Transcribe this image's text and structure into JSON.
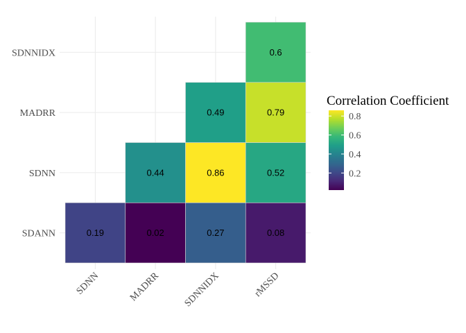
{
  "chart_data": {
    "type": "heatmap",
    "title": "",
    "xlabel": "",
    "ylabel": "",
    "x_categories": [
      "SDNN",
      "MADRR",
      "SDNNIDX",
      "rMSSD"
    ],
    "y_categories": [
      "SDANN",
      "SDNN",
      "MADRR",
      "SDNNIDX"
    ],
    "cells": [
      {
        "x": "SDNN",
        "y": "SDANN",
        "value": 0.19,
        "label": "0.19"
      },
      {
        "x": "MADRR",
        "y": "SDANN",
        "value": 0.02,
        "label": "0.02"
      },
      {
        "x": "SDNNIDX",
        "y": "SDANN",
        "value": 0.27,
        "label": "0.27"
      },
      {
        "x": "rMSSD",
        "y": "SDANN",
        "value": 0.08,
        "label": "0.08"
      },
      {
        "x": "MADRR",
        "y": "SDNN",
        "value": 0.44,
        "label": "0.44"
      },
      {
        "x": "SDNNIDX",
        "y": "SDNN",
        "value": 0.86,
        "label": "0.86"
      },
      {
        "x": "rMSSD",
        "y": "SDNN",
        "value": 0.52,
        "label": "0.52"
      },
      {
        "x": "SDNNIDX",
        "y": "MADRR",
        "value": 0.49,
        "label": "0.49"
      },
      {
        "x": "rMSSD",
        "y": "MADRR",
        "value": 0.79,
        "label": "0.79"
      },
      {
        "x": "rMSSD",
        "y": "SDNNIDX",
        "value": 0.6,
        "label": "0.6"
      }
    ],
    "legend": {
      "title": "Correlation Coefficient",
      "position": "right",
      "colormap": "viridis",
      "range": [
        0.02,
        0.86
      ],
      "ticks": [
        0.2,
        0.4,
        0.6,
        0.8
      ],
      "tick_labels": [
        "0.2",
        "0.4",
        "0.6",
        "0.8"
      ]
    },
    "grid": true
  },
  "colors": {
    "background": "#ffffff",
    "grid": "#ebebeb",
    "viridis": [
      "#440154",
      "#482878",
      "#3e4a89",
      "#31688e",
      "#26828e",
      "#1f9e89",
      "#35b779",
      "#6ece58",
      "#b5de2b",
      "#fde725"
    ]
  }
}
